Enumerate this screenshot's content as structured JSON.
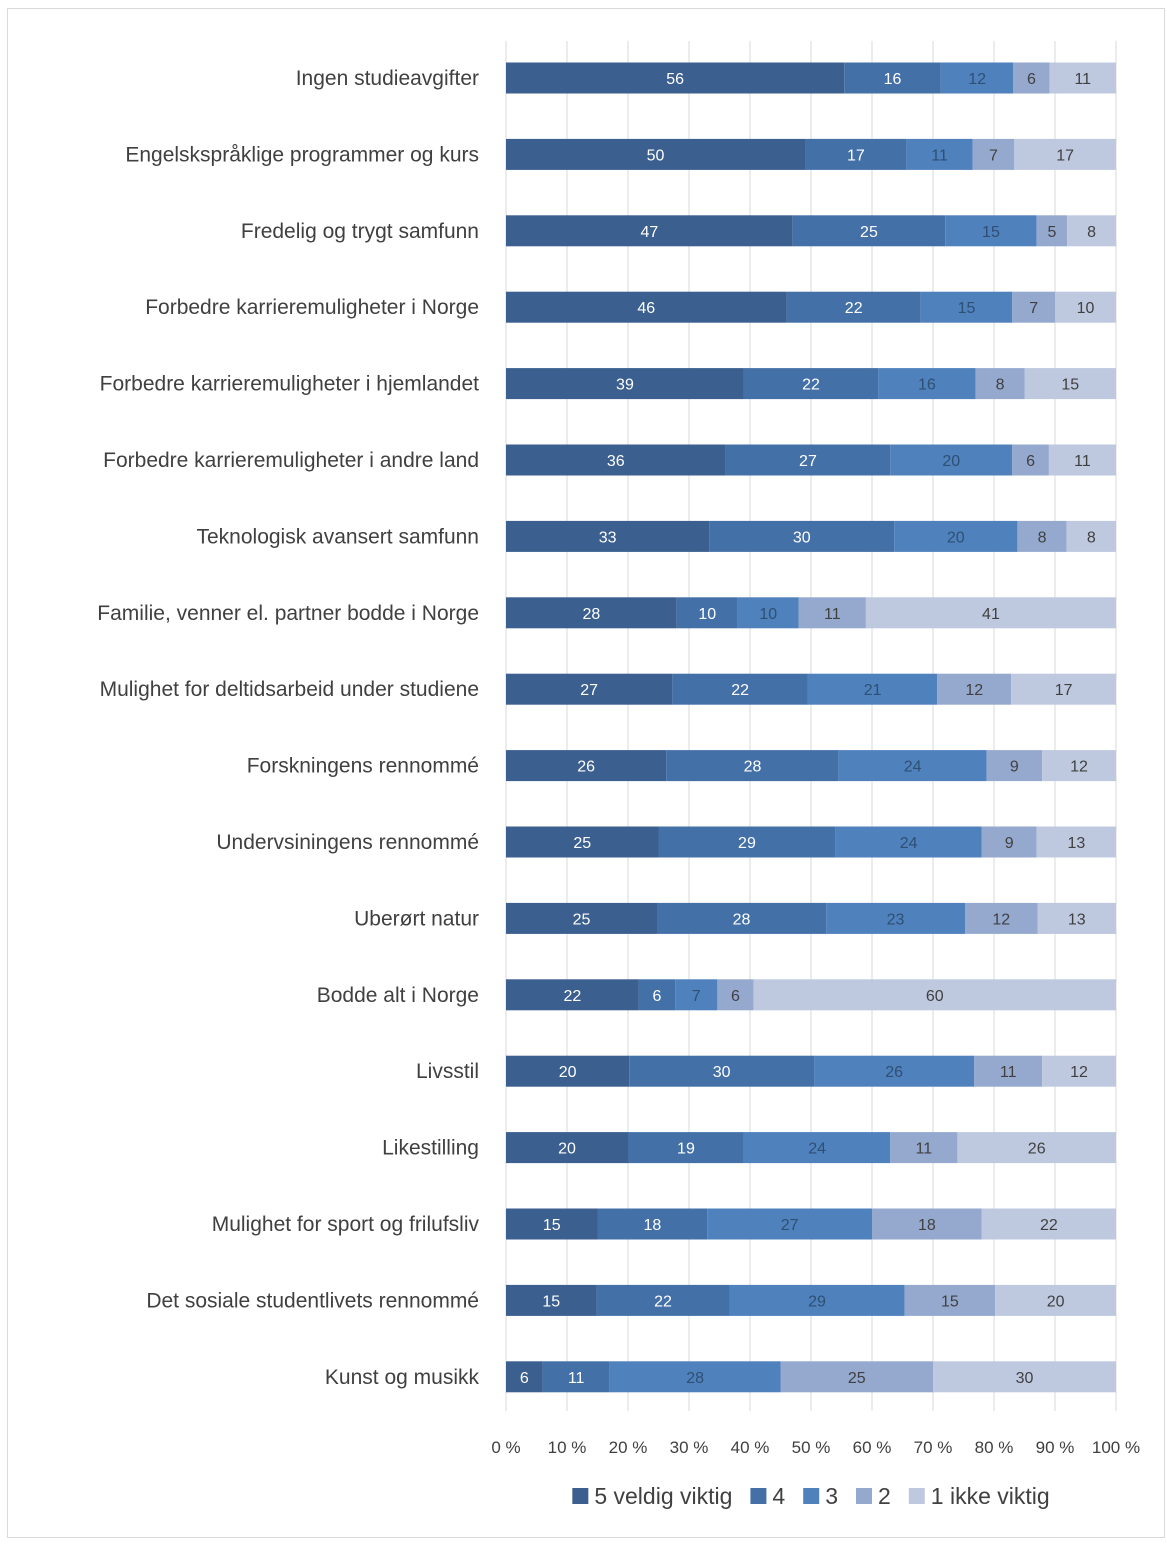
{
  "chart_data": {
    "type": "bar",
    "orientation": "horizontal",
    "stacked": "percent",
    "categories": [
      "Ingen studieavgifter",
      "Engelskspråklige programmer og kurs",
      "Fredelig og trygt samfunn",
      "Forbedre karrieremuligheter i Norge",
      "Forbedre karrieremuligheter i hjemlandet",
      "Forbedre karrieremuligheter i andre land",
      "Teknologisk avansert samfunn",
      "Familie, venner el. partner bodde i Norge",
      "Mulighet for deltidsarbeid under studiene",
      "Forskningens rennommé",
      "Undervsiningens rennommé",
      "Uberørt natur",
      "Bodde alt i Norge",
      "Livsstil",
      "Likestilling",
      "Mulighet for sport og frilufsliv",
      "Det sosiale studentlivets rennommé",
      "Kunst og musikk"
    ],
    "series": [
      {
        "name": "5 veldig viktig",
        "color": "#3b5f8f",
        "label_color": "#ffffff",
        "values": [
          56,
          50,
          47,
          46,
          39,
          36,
          33,
          28,
          27,
          26,
          25,
          25,
          22,
          20,
          20,
          15,
          15,
          6
        ]
      },
      {
        "name": "4",
        "color": "#4470a8",
        "label_color": "#ffffff",
        "values": [
          16,
          17,
          25,
          22,
          22,
          27,
          30,
          10,
          22,
          28,
          29,
          28,
          6,
          30,
          19,
          18,
          22,
          11
        ]
      },
      {
        "name": "3",
        "color": "#4f81bd",
        "label_color": "#2f4f73",
        "values": [
          12,
          11,
          15,
          15,
          16,
          20,
          20,
          10,
          21,
          24,
          24,
          23,
          7,
          26,
          24,
          27,
          29,
          28
        ]
      },
      {
        "name": "2",
        "color": "#95a9cf",
        "label_color": "#404040",
        "values": [
          6,
          7,
          5,
          7,
          8,
          6,
          8,
          11,
          12,
          9,
          9,
          12,
          6,
          11,
          11,
          18,
          15,
          25
        ]
      },
      {
        "name": "1 ikke viktig",
        "color": "#bec9e0",
        "label_color": "#404040",
        "values": [
          11,
          17,
          8,
          10,
          15,
          11,
          8,
          41,
          17,
          12,
          13,
          13,
          60,
          12,
          26,
          22,
          20,
          30
        ]
      }
    ],
    "x_ticks": [
      "0 %",
      "10 %",
      "20 %",
      "30 %",
      "40 %",
      "50 %",
      "60 %",
      "70 %",
      "80 %",
      "90 %",
      "100 %"
    ],
    "xlim": [
      0,
      100
    ],
    "grid": "vertical",
    "legend_position": "bottom"
  }
}
